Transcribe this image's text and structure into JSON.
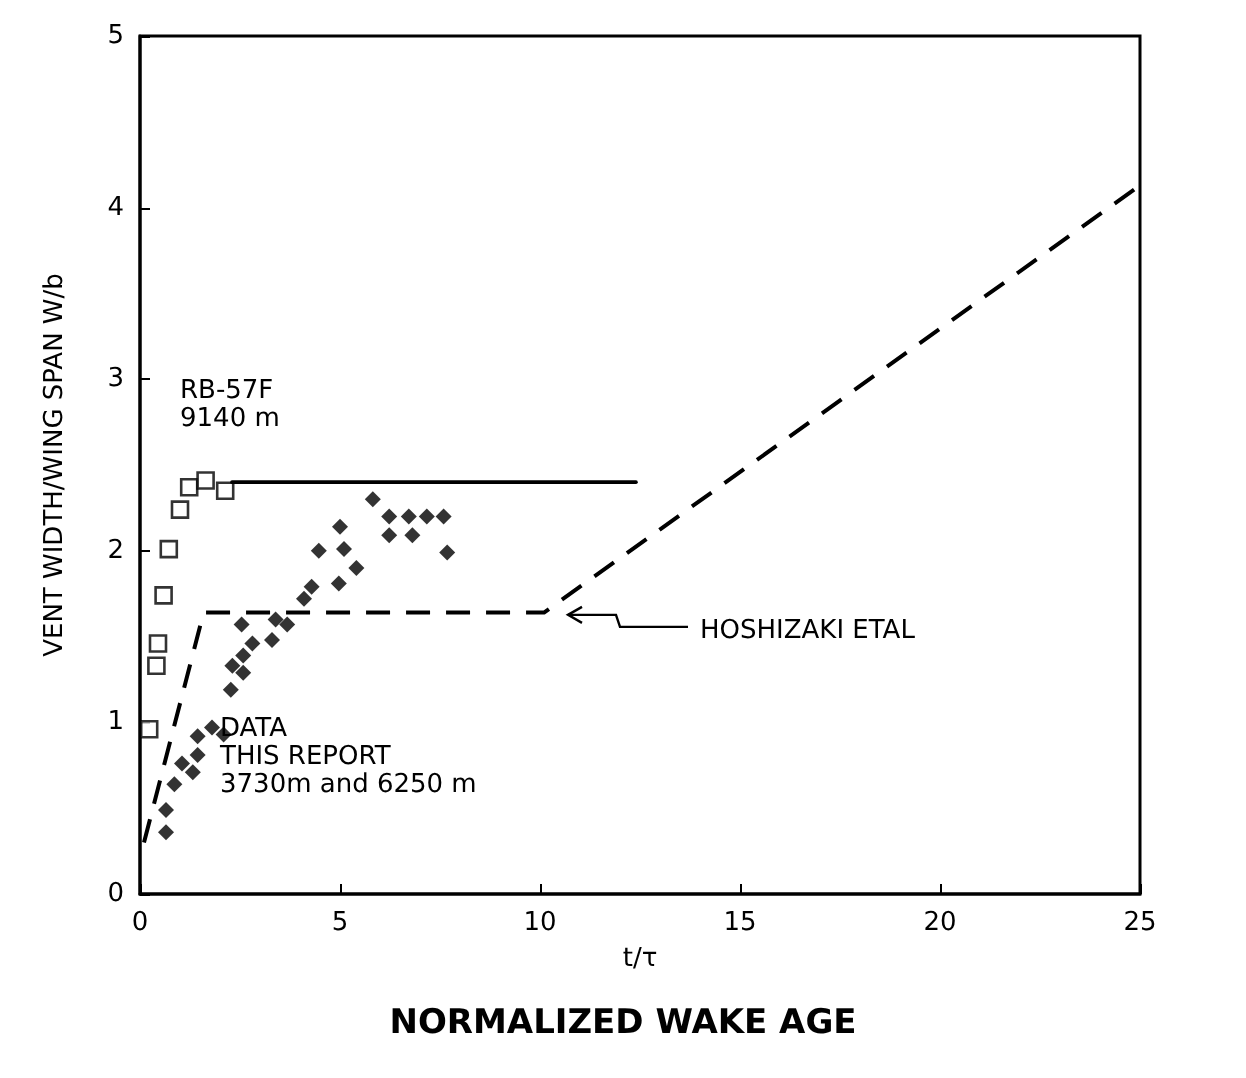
{
  "chart_data": {
    "type": "scatter",
    "title": "NORMALIZED WAKE AGE",
    "xlabel": "t/τ",
    "ylabel": "VENT WIDTH/WING SPAN W/b",
    "xlim": [
      0,
      25
    ],
    "xticks": [
      0,
      5,
      10,
      15,
      20,
      25
    ],
    "ylim": [
      0,
      5
    ],
    "yticks": [
      0,
      1,
      2,
      3,
      4,
      5
    ],
    "grid": false,
    "series": [
      {
        "marker": "square",
        "color": "#000000",
        "x": [
          0.23,
          0.41,
          0.45,
          0.59,
          0.72,
          1.0,
          1.23,
          1.64,
          2.13
        ],
        "values": [
          0.96,
          1.33,
          1.46,
          1.74,
          2.01,
          2.24,
          2.37,
          2.41,
          2.35
        ]
      },
      {
        "type": "line",
        "marker": "none",
        "line_style": "solid",
        "color": "#000000",
        "x": [
          2.3,
          12.4
        ],
        "values": [
          2.4,
          2.4
        ]
      },
      {
        "marker": "diamond",
        "color": "#000000",
        "x": [
          0.65,
          0.65,
          0.86,
          1.05,
          1.32,
          1.44,
          1.44,
          1.8,
          2.09,
          2.27,
          2.31,
          2.58,
          2.58,
          2.54,
          2.81,
          3.3,
          3.39,
          3.68,
          4.1,
          4.29,
          4.47,
          4.97,
          5.0,
          5.1,
          5.41,
          5.82,
          6.23,
          6.23,
          6.72,
          6.81,
          7.17,
          7.59,
          7.68
        ],
        "values": [
          0.36,
          0.49,
          0.64,
          0.76,
          0.71,
          0.81,
          0.92,
          0.97,
          0.93,
          1.19,
          1.33,
          1.29,
          1.39,
          1.57,
          1.46,
          1.48,
          1.6,
          1.57,
          1.72,
          1.79,
          2.0,
          1.81,
          2.14,
          2.01,
          1.9,
          2.3,
          2.2,
          2.09,
          2.2,
          2.09,
          2.2,
          2.2,
          1.99
        ]
      },
      {
        "type": "line",
        "marker": "none",
        "line_style": "dashed",
        "color": "#000000",
        "x": [
          0.1,
          1.59,
          10.1,
          25
        ],
        "values": [
          0.3,
          1.64,
          1.64,
          4.13
        ]
      }
    ],
    "annotations": [
      "RB-57F\n9140 m",
      "DATA\nTHIS REPORT\n3730m and 6250 m",
      {
        "text": "HOSHIZAKI ETAL",
        "x": 10.5,
        "y": 1.65
      }
    ]
  }
}
